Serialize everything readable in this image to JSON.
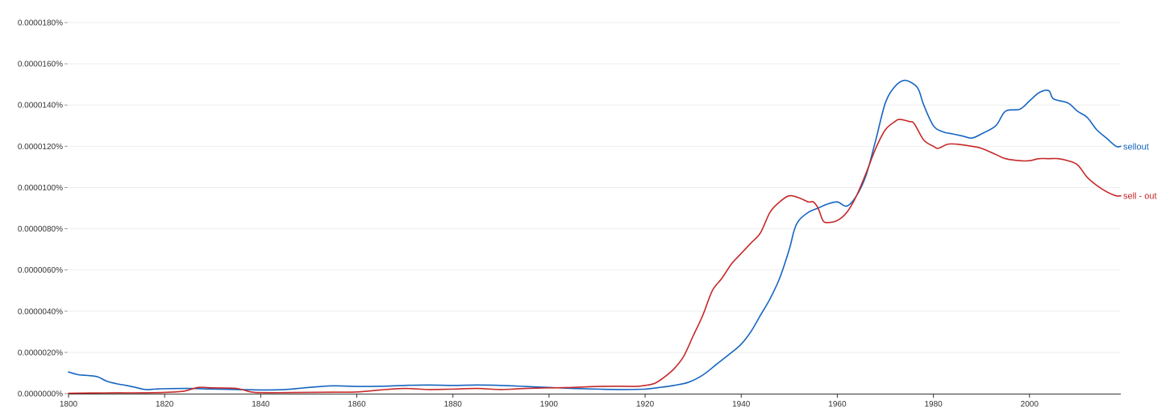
{
  "chart_data": {
    "type": "line",
    "title": "",
    "xlabel": "",
    "ylabel": "",
    "xlim": [
      1800,
      2019
    ],
    "ylim": [
      0,
      1.8e-07
    ],
    "grid": true,
    "legend": "inline-right",
    "x_ticks": [
      {
        "value": 1800,
        "label": "1800"
      },
      {
        "value": 1820,
        "label": "1820"
      },
      {
        "value": 1840,
        "label": "1840"
      },
      {
        "value": 1860,
        "label": "1860"
      },
      {
        "value": 1880,
        "label": "1880"
      },
      {
        "value": 1900,
        "label": "1900"
      },
      {
        "value": 1920,
        "label": "1920"
      },
      {
        "value": 1940,
        "label": "1940"
      },
      {
        "value": 1960,
        "label": "1960"
      },
      {
        "value": 1980,
        "label": "1980"
      },
      {
        "value": 2000,
        "label": "2000"
      }
    ],
    "y_ticks": [
      {
        "value": 0,
        "label": "0.0000000%"
      },
      {
        "value": 2e-08,
        "label": "0.0000020%"
      },
      {
        "value": 4e-08,
        "label": "0.0000040%"
      },
      {
        "value": 6e-08,
        "label": "0.0000060%"
      },
      {
        "value": 8e-08,
        "label": "0.0000080%"
      },
      {
        "value": 1e-07,
        "label": "0.0000100%"
      },
      {
        "value": 1.2e-07,
        "label": "0.0000120%"
      },
      {
        "value": 1.4e-07,
        "label": "0.0000140%"
      },
      {
        "value": 1.6e-07,
        "label": "0.0000160%"
      },
      {
        "value": 1.8e-07,
        "label": "0.0000180%"
      }
    ],
    "series": [
      {
        "name": "sellout",
        "color": "#1565c0",
        "points": [
          [
            1800,
            1.05e-08
          ],
          [
            1802,
            9.2e-09
          ],
          [
            1804,
            8.8e-09
          ],
          [
            1806,
            8.2e-09
          ],
          [
            1808,
            6e-09
          ],
          [
            1810,
            4.8e-09
          ],
          [
            1812,
            4e-09
          ],
          [
            1814,
            3e-09
          ],
          [
            1816,
            2e-09
          ],
          [
            1818,
            2.2e-09
          ],
          [
            1820,
            2.4e-09
          ],
          [
            1825,
            2.5e-09
          ],
          [
            1830,
            2.2e-09
          ],
          [
            1835,
            2e-09
          ],
          [
            1840,
            1.8e-09
          ],
          [
            1845,
            2e-09
          ],
          [
            1850,
            3e-09
          ],
          [
            1855,
            3.8e-09
          ],
          [
            1860,
            3.5e-09
          ],
          [
            1865,
            3.6e-09
          ],
          [
            1870,
            4e-09
          ],
          [
            1875,
            4.2e-09
          ],
          [
            1880,
            4e-09
          ],
          [
            1885,
            4.2e-09
          ],
          [
            1890,
            4e-09
          ],
          [
            1895,
            3.5e-09
          ],
          [
            1900,
            3e-09
          ],
          [
            1905,
            2.5e-09
          ],
          [
            1910,
            2.2e-09
          ],
          [
            1915,
            2e-09
          ],
          [
            1920,
            2.2e-09
          ],
          [
            1923,
            3e-09
          ],
          [
            1926,
            4e-09
          ],
          [
            1929,
            5.5e-09
          ],
          [
            1932,
            9e-09
          ],
          [
            1935,
            1.45e-08
          ],
          [
            1938,
            2e-08
          ],
          [
            1940,
            2.4e-08
          ],
          [
            1942,
            3e-08
          ],
          [
            1944,
            3.8e-08
          ],
          [
            1946,
            4.6e-08
          ],
          [
            1948,
            5.6e-08
          ],
          [
            1950,
            7e-08
          ],
          [
            1951,
            7.9e-08
          ],
          [
            1952,
            8.4e-08
          ],
          [
            1954,
            8.8e-08
          ],
          [
            1956,
            9e-08
          ],
          [
            1958,
            9.2e-08
          ],
          [
            1960,
            9.3e-08
          ],
          [
            1962,
            9.1e-08
          ],
          [
            1964,
            9.6e-08
          ],
          [
            1966,
            1.06e-07
          ],
          [
            1968,
            1.23e-07
          ],
          [
            1970,
            1.41e-07
          ],
          [
            1972,
            1.49e-07
          ],
          [
            1974,
            1.52e-07
          ],
          [
            1976,
            1.5e-07
          ],
          [
            1977,
            1.47e-07
          ],
          [
            1978,
            1.4e-07
          ],
          [
            1980,
            1.3e-07
          ],
          [
            1982,
            1.27e-07
          ],
          [
            1984,
            1.26e-07
          ],
          [
            1986,
            1.25e-07
          ],
          [
            1988,
            1.24e-07
          ],
          [
            1990,
            1.26e-07
          ],
          [
            1993,
            1.3e-07
          ],
          [
            1995,
            1.37e-07
          ],
          [
            1998,
            1.38e-07
          ],
          [
            2000,
            1.42e-07
          ],
          [
            2002,
            1.46e-07
          ],
          [
            2004,
            1.47e-07
          ],
          [
            2005,
            1.43e-07
          ],
          [
            2008,
            1.41e-07
          ],
          [
            2010,
            1.37e-07
          ],
          [
            2012,
            1.34e-07
          ],
          [
            2014,
            1.28e-07
          ],
          [
            2016,
            1.24e-07
          ],
          [
            2018,
            1.2e-07
          ],
          [
            2019,
            1.2e-07
          ]
        ]
      },
      {
        "name": "sell - out",
        "color": "#c62828",
        "points": [
          [
            1800,
            2e-10
          ],
          [
            1805,
            3e-10
          ],
          [
            1810,
            4e-10
          ],
          [
            1815,
            4e-10
          ],
          [
            1820,
            6e-10
          ],
          [
            1824,
            1.2e-09
          ],
          [
            1827,
            3e-09
          ],
          [
            1830,
            2.8e-09
          ],
          [
            1835,
            2.5e-09
          ],
          [
            1838,
            8e-10
          ],
          [
            1840,
            5e-10
          ],
          [
            1845,
            5e-10
          ],
          [
            1850,
            6e-10
          ],
          [
            1855,
            7e-10
          ],
          [
            1860,
            8e-10
          ],
          [
            1865,
            1.8e-09
          ],
          [
            1870,
            2.5e-09
          ],
          [
            1875,
            2e-09
          ],
          [
            1880,
            2.2e-09
          ],
          [
            1885,
            2.5e-09
          ],
          [
            1890,
            2e-09
          ],
          [
            1895,
            2.5e-09
          ],
          [
            1900,
            2.8e-09
          ],
          [
            1905,
            3e-09
          ],
          [
            1910,
            3.5e-09
          ],
          [
            1915,
            3.6e-09
          ],
          [
            1918,
            3.5e-09
          ],
          [
            1920,
            4e-09
          ],
          [
            1922,
            5e-09
          ],
          [
            1924,
            8e-09
          ],
          [
            1926,
            1.2e-08
          ],
          [
            1928,
            1.8e-08
          ],
          [
            1930,
            2.8e-08
          ],
          [
            1932,
            3.8e-08
          ],
          [
            1934,
            5e-08
          ],
          [
            1936,
            5.6e-08
          ],
          [
            1938,
            6.3e-08
          ],
          [
            1940,
            6.8e-08
          ],
          [
            1942,
            7.3e-08
          ],
          [
            1944,
            7.8e-08
          ],
          [
            1946,
            8.8e-08
          ],
          [
            1948,
            9.3e-08
          ],
          [
            1950,
            9.6e-08
          ],
          [
            1952,
            9.5e-08
          ],
          [
            1954,
            9.3e-08
          ],
          [
            1955,
            9.3e-08
          ],
          [
            1956,
            9e-08
          ],
          [
            1957,
            8.4e-08
          ],
          [
            1958,
            8.3e-08
          ],
          [
            1960,
            8.4e-08
          ],
          [
            1962,
            8.8e-08
          ],
          [
            1964,
            9.6e-08
          ],
          [
            1966,
            1.07e-07
          ],
          [
            1968,
            1.19e-07
          ],
          [
            1970,
            1.28e-07
          ],
          [
            1972,
            1.32e-07
          ],
          [
            1973,
            1.33e-07
          ],
          [
            1975,
            1.32e-07
          ],
          [
            1976,
            1.31e-07
          ],
          [
            1978,
            1.23e-07
          ],
          [
            1980,
            1.2e-07
          ],
          [
            1981,
            1.19e-07
          ],
          [
            1983,
            1.21e-07
          ],
          [
            1985,
            1.21e-07
          ],
          [
            1988,
            1.2e-07
          ],
          [
            1990,
            1.19e-07
          ],
          [
            1993,
            1.16e-07
          ],
          [
            1995,
            1.14e-07
          ],
          [
            1998,
            1.13e-07
          ],
          [
            2000,
            1.13e-07
          ],
          [
            2002,
            1.14e-07
          ],
          [
            2004,
            1.14e-07
          ],
          [
            2006,
            1.14e-07
          ],
          [
            2008,
            1.13e-07
          ],
          [
            2010,
            1.11e-07
          ],
          [
            2012,
            1.05e-07
          ],
          [
            2014,
            1.01e-07
          ],
          [
            2016,
            9.8e-08
          ],
          [
            2018,
            9.6e-08
          ],
          [
            2019,
            9.6e-08
          ]
        ]
      }
    ]
  }
}
